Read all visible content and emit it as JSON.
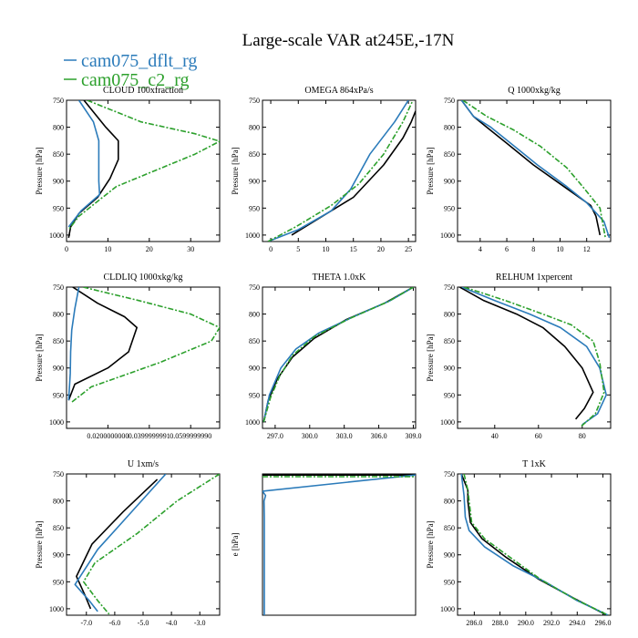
{
  "figure": {
    "title": "Large-scale VAR at245E,-17N",
    "legend": [
      {
        "name": "cam075_dflt_rg",
        "color": "#2b7bba"
      },
      {
        "name": "cam075_c2_rg",
        "color": "#2ca02c"
      }
    ]
  },
  "chart_data": [
    {
      "type": "line",
      "title": "CLOUD 100xfraction",
      "ylabel": "Pressure [hPa]",
      "yticks": [
        "750",
        "800",
        "850",
        "900",
        "950",
        "1000"
      ],
      "xticks": [
        "0",
        "10",
        "20",
        "30"
      ],
      "xlim": [
        0,
        37
      ],
      "ylim": [
        750,
        1012
      ],
      "grid": false,
      "series": [
        {
          "name": "",
          "color": "#000000",
          "dash": "",
          "x": [
            4.2,
            9.5,
            12.5,
            12.5,
            10.5,
            7.5,
            3.0,
            1.0,
            0.5
          ],
          "y": [
            750,
            800,
            825,
            860,
            895,
            930,
            960,
            985,
            1005
          ]
        },
        {
          "name": "cam075_dflt_rg",
          "color": "#2b7bba",
          "dash": "",
          "x": [
            3.0,
            6.5,
            7.8,
            7.8,
            7.8,
            8.0,
            3.5,
            0.5
          ],
          "y": [
            750,
            790,
            825,
            860,
            900,
            925,
            955,
            985
          ]
        },
        {
          "name": "cam075_c2_rg",
          "color": "#2ca02c",
          "dash": "6,2,2,2",
          "x": [
            5.0,
            18.0,
            31.0,
            37.0,
            31.0,
            12.0,
            3.0,
            0.5
          ],
          "y": [
            750,
            790,
            812,
            826,
            850,
            910,
            965,
            990
          ]
        }
      ]
    },
    {
      "type": "line",
      "title": "OMEGA 864xPa/s",
      "ylabel": "Pressure [hPa]",
      "yticks": [
        "750",
        "800",
        "850",
        "900",
        "950",
        "1000"
      ],
      "xticks": [
        "0",
        "5",
        "10",
        "15",
        "20",
        "25"
      ],
      "xlim": [
        -1.5,
        26.3
      ],
      "ylim": [
        750,
        1012
      ],
      "grid": false,
      "series": [
        {
          "name": "",
          "color": "#000000",
          "dash": "",
          "x": [
            3.8,
            15.0,
            20.5,
            24.0,
            25.5,
            26.3
          ],
          "y": [
            1000,
            930,
            870,
            820,
            790,
            770
          ]
        },
        {
          "name": "cam075_dflt_rg",
          "color": "#2b7bba",
          "dash": "",
          "x": [
            -0.5,
            5.0,
            11.0,
            14.5,
            18.0,
            22.5,
            25.0
          ],
          "y": [
            1012,
            990,
            955,
            915,
            850,
            790,
            750
          ]
        },
        {
          "name": "cam075_c2_rg",
          "color": "#2ca02c",
          "dash": "6,2,2,2",
          "x": [
            -0.5,
            4.5,
            11.0,
            16.0,
            20.5,
            24.0,
            25.8
          ],
          "y": [
            1012,
            985,
            945,
            905,
            850,
            790,
            750
          ]
        }
      ]
    },
    {
      "type": "line",
      "title": "Q 1000xkg/kg",
      "ylabel": "Pressure [hPa]",
      "yticks": [
        "750",
        "800",
        "850",
        "900",
        "950",
        "1000"
      ],
      "xticks": [
        "4",
        "6",
        "8",
        "10",
        "12"
      ],
      "xlim": [
        2.3,
        13.8
      ],
      "ylim": [
        750,
        1012
      ],
      "grid": false,
      "series": [
        {
          "name": "",
          "color": "#000000",
          "dash": "",
          "x": [
            2.6,
            3.5,
            4.5,
            6.0,
            8.0,
            10.0,
            12.3,
            12.7,
            13.0
          ],
          "y": [
            750,
            780,
            800,
            830,
            870,
            905,
            945,
            965,
            1000
          ]
        },
        {
          "name": "cam075_dflt_rg",
          "color": "#2b7bba",
          "dash": "",
          "x": [
            2.6,
            3.5,
            4.8,
            6.3,
            8.3,
            10.5,
            12.0,
            13.3,
            13.7
          ],
          "y": [
            750,
            780,
            800,
            830,
            870,
            910,
            940,
            975,
            1005
          ]
        },
        {
          "name": "cam075_c2_rg",
          "color": "#2ca02c",
          "dash": "6,2,2,2",
          "x": [
            2.7,
            4.5,
            6.5,
            8.5,
            10.5,
            11.7,
            13.0,
            13.4
          ],
          "y": [
            750,
            780,
            805,
            835,
            875,
            910,
            950,
            1005
          ]
        }
      ]
    },
    {
      "type": "line",
      "title": "CLDLIQ 1000xkg/kg",
      "ylabel": "Pressure [hPa]",
      "yticks": [
        "750",
        "800",
        "850",
        "900",
        "950",
        "1000"
      ],
      "xticks": [
        "0.0200000000",
        "0.0399999991",
        "0.0599999990"
      ],
      "xlim": [
        0,
        0.074
      ],
      "ylim": [
        750,
        1012
      ],
      "grid": false,
      "series": [
        {
          "name": "",
          "color": "#000000",
          "dash": "",
          "x": [
            0.003,
            0.015,
            0.028,
            0.034,
            0.03,
            0.02,
            0.004,
            0.001
          ],
          "y": [
            750,
            780,
            805,
            825,
            870,
            900,
            930,
            960
          ]
        },
        {
          "name": "cam075_dflt_rg",
          "color": "#2b7bba",
          "dash": "",
          "x": [
            0.006,
            0.004,
            0.0025,
            0.002,
            0.0018,
            0.0015,
            0.001
          ],
          "y": [
            750,
            790,
            830,
            870,
            910,
            930,
            960
          ]
        },
        {
          "name": "cam075_c2_rg",
          "color": "#2ca02c",
          "dash": "6,2,2,2",
          "x": [
            0.008,
            0.035,
            0.06,
            0.074,
            0.07,
            0.045,
            0.012,
            0.002
          ],
          "y": [
            750,
            775,
            800,
            825,
            850,
            890,
            935,
            965
          ]
        }
      ]
    },
    {
      "type": "line",
      "title": "THETA 1.0xK",
      "ylabel": "",
      "yticks": [
        "750",
        "800",
        "850",
        "900",
        "950",
        "1000"
      ],
      "xticks": [
        "297.0",
        "300.0",
        "303.0",
        "306.0",
        "309.0"
      ],
      "xlim": [
        295.9,
        309.2
      ],
      "ylim": [
        750,
        1012
      ],
      "grid": false,
      "series": [
        {
          "name": "",
          "color": "#000000",
          "dash": "",
          "x": [
            296.0,
            296.4,
            297.2,
            298.5,
            300.4,
            303.2,
            306.5,
            309.0
          ],
          "y": [
            1000,
            960,
            920,
            880,
            845,
            810,
            780,
            750
          ]
        },
        {
          "name": "cam075_dflt_rg",
          "color": "#2b7bba",
          "dash": "",
          "x": [
            296.0,
            296.5,
            297.5,
            298.8,
            300.8,
            303.8,
            307.0,
            309.0
          ],
          "y": [
            1000,
            950,
            900,
            865,
            835,
            805,
            775,
            750
          ]
        },
        {
          "name": "cam075_c2_rg",
          "color": "#2ca02c",
          "dash": "6,2,2,2",
          "x": [
            296.0,
            296.6,
            297.4,
            298.5,
            300.4,
            303.5,
            306.8,
            309.0
          ],
          "y": [
            1000,
            955,
            915,
            877,
            842,
            808,
            777,
            750
          ]
        }
      ]
    },
    {
      "type": "line",
      "title": "RELHUM 1xpercent",
      "ylabel": "Pressure [hPa]",
      "yticks": [
        "750",
        "800",
        "850",
        "900",
        "950",
        "1000"
      ],
      "xticks": [
        "40",
        "60",
        "80"
      ],
      "xlim": [
        23,
        93
      ],
      "ylim": [
        750,
        1012
      ],
      "grid": false,
      "series": [
        {
          "name": "",
          "color": "#000000",
          "dash": "",
          "x": [
            24,
            35,
            50,
            62,
            72,
            80,
            85,
            81,
            77
          ],
          "y": [
            750,
            775,
            800,
            825,
            860,
            900,
            945,
            975,
            995
          ]
        },
        {
          "name": "cam075_dflt_rg",
          "color": "#2b7bba",
          "dash": "",
          "x": [
            25,
            40,
            56,
            70,
            82,
            88,
            91,
            87,
            80
          ],
          "y": [
            750,
            775,
            800,
            825,
            860,
            900,
            950,
            985,
            1005
          ]
        },
        {
          "name": "cam075_c2_rg",
          "color": "#2ca02c",
          "dash": "6,2,2,2",
          "x": [
            26,
            45,
            62,
            75,
            85,
            88,
            90,
            86,
            79
          ],
          "y": [
            750,
            775,
            800,
            820,
            850,
            890,
            945,
            985,
            1010
          ]
        }
      ]
    },
    {
      "type": "line",
      "title": "U 1xm/s",
      "ylabel": "Pressure [hPa]",
      "yticks": [
        "750",
        "800",
        "850",
        "900",
        "950",
        "1000"
      ],
      "xticks": [
        "-7.0",
        "-6.0",
        "-5.0",
        "-4.0",
        "-3.0"
      ],
      "xlim": [
        -7.7,
        -2.3
      ],
      "ylim": [
        750,
        1012
      ],
      "grid": false,
      "series": [
        {
          "name": "",
          "color": "#000000",
          "dash": "",
          "x": [
            -4.5,
            -5.7,
            -6.8,
            -7.35,
            -7.05,
            -6.85
          ],
          "y": [
            760,
            820,
            880,
            940,
            975,
            1000
          ]
        },
        {
          "name": "cam075_dflt_rg",
          "color": "#2b7bba",
          "dash": "",
          "x": [
            -4.2,
            -5.4,
            -6.6,
            -7.4,
            -6.9,
            -6.6
          ],
          "y": [
            750,
            820,
            890,
            955,
            985,
            1005
          ]
        },
        {
          "name": "cam075_c2_rg",
          "color": "#2ca02c",
          "dash": "6,2,2,2",
          "x": [
            -2.3,
            -3.8,
            -5.2,
            -6.7,
            -7.1,
            -6.6,
            -6.2
          ],
          "y": [
            750,
            800,
            860,
            915,
            950,
            985,
            1010
          ]
        }
      ]
    },
    {
      "type": "line",
      "title": "",
      "ylabel": "e [hPa]",
      "yticks": [],
      "xticks": [],
      "xlim": [
        0,
        1
      ],
      "ylim": [
        750,
        1012
      ],
      "grid": false,
      "series": [
        {
          "name": "",
          "color": "#000000",
          "dash": "",
          "x": [
            0.0,
            1.0
          ],
          "y": [
            752,
            752
          ]
        },
        {
          "name": "cam075_dflt_rg",
          "color": "#2b7bba",
          "dash": "",
          "x": [
            0.0,
            1.0,
            0.0,
            0.02,
            0.01,
            0.012,
            0.012
          ],
          "y": [
            782,
            752,
            782,
            790,
            800,
            830,
            1012
          ]
        },
        {
          "name": "cam075_c2_rg",
          "color": "#2ca02c",
          "dash": "6,2,2,2",
          "x": [
            0.0,
            1.0
          ],
          "y": [
            755,
            755
          ]
        }
      ]
    },
    {
      "type": "line",
      "title": "T 1xK",
      "ylabel": "Pressure [hPa]",
      "yticks": [
        "750",
        "800",
        "850",
        "900",
        "950",
        "1000"
      ],
      "xticks": [
        "286.0",
        "288.0",
        "290.0",
        "292.0",
        "294.0",
        "296.0"
      ],
      "xlim": [
        284.7,
        296.6
      ],
      "ylim": [
        750,
        1012
      ],
      "grid": false,
      "series": [
        {
          "name": "",
          "color": "#000000",
          "dash": "",
          "x": [
            285.0,
            285.5,
            285.5,
            285.7,
            286.6,
            288.5,
            291.0,
            293.7,
            296.3
          ],
          "y": [
            750,
            780,
            800,
            840,
            870,
            905,
            945,
            980,
            1012
          ]
        },
        {
          "name": "cam075_dflt_rg",
          "color": "#2b7bba",
          "dash": "",
          "x": [
            285.0,
            285.2,
            285.3,
            285.6,
            286.8,
            289.0,
            291.5,
            294.0,
            296.4
          ],
          "y": [
            750,
            790,
            830,
            855,
            885,
            920,
            950,
            985,
            1012
          ]
        },
        {
          "name": "cam075_c2_rg",
          "color": "#2ca02c",
          "dash": "6,2,2,2",
          "x": [
            285.2,
            285.5,
            285.6,
            285.8,
            286.8,
            288.8,
            291.3,
            293.9,
            296.4
          ],
          "y": [
            750,
            780,
            800,
            840,
            870,
            905,
            948,
            983,
            1012
          ]
        }
      ]
    }
  ]
}
